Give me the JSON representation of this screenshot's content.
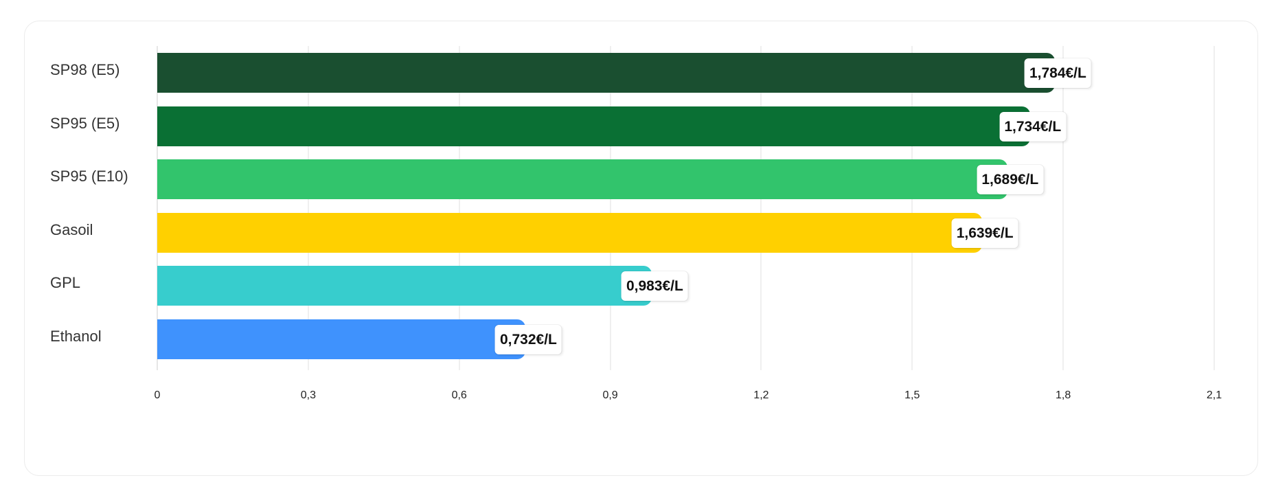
{
  "chart_data": {
    "type": "bar",
    "orientation": "horizontal",
    "title": "",
    "xlabel": "",
    "ylabel": "",
    "categories": [
      "SP98 (E5)",
      "SP95 (E5)",
      "SP95 (E10)",
      "Gasoil",
      "GPL",
      "Ethanol"
    ],
    "values": [
      1.784,
      1.734,
      1.689,
      1.639,
      0.983,
      0.732
    ],
    "value_labels": [
      "1,784€/L",
      "1,734€/L",
      "1,689€/L",
      "1,639€/L",
      "0,983€/L",
      "0,732€/L"
    ],
    "colors": [
      "#1a4f30",
      "#0a7034",
      "#32c46c",
      "#ffd000",
      "#37cdcd",
      "#3f92fd"
    ],
    "xlim": [
      0,
      2.1
    ],
    "xticks": [
      0,
      0.3,
      0.6,
      0.9,
      1.2,
      1.5,
      1.8,
      2.1
    ],
    "xtick_labels": [
      "0",
      "0,3",
      "0,6",
      "0,9",
      "1,2",
      "1,5",
      "1,8",
      "2,1"
    ],
    "grid": "vertical",
    "legend": "none",
    "unit": "€/L"
  }
}
